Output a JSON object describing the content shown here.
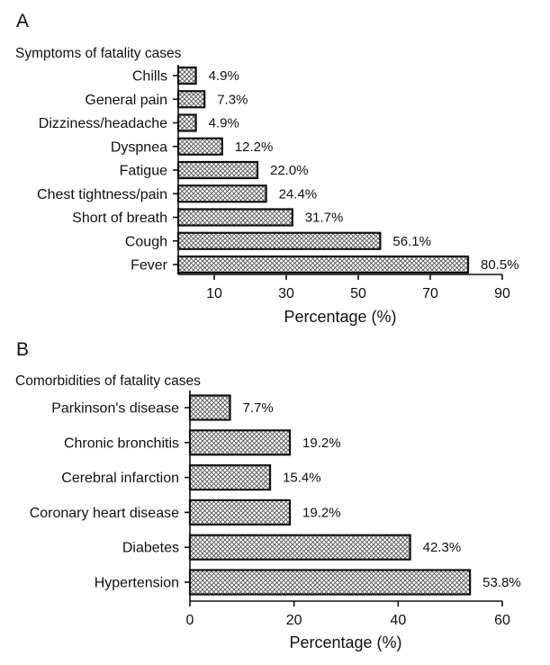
{
  "chart_data": [
    {
      "panel_label": "A",
      "type": "bar",
      "orientation": "horizontal",
      "title": "Symptoms of fatality cases",
      "categories": [
        "Chills",
        "General pain",
        "Dizziness/headache",
        "Dyspnea",
        "Fatigue",
        "Chest tightness/pain",
        "Short of breath",
        "Cough",
        "Fever"
      ],
      "values": [
        4.9,
        7.3,
        4.9,
        12.2,
        22.0,
        24.4,
        31.7,
        56.1,
        80.5
      ],
      "value_labels": [
        "4.9%",
        "7.3%",
        "4.9%",
        "12.2%",
        "22.0%",
        "24.4%",
        "31.7%",
        "56.1%",
        "80.5%"
      ],
      "xlabel": "Percentage (%)",
      "xlim": [
        0,
        90
      ],
      "xticks": [
        10,
        30,
        50,
        70,
        90
      ],
      "grid": false,
      "bar_pattern": "crosshatch"
    },
    {
      "panel_label": "B",
      "type": "bar",
      "orientation": "horizontal",
      "title": "Comorbidities of fatality cases",
      "categories": [
        "Parkinson's disease",
        "Chronic bronchitis",
        "Cerebral infarction",
        "Coronary heart disease",
        "Diabetes",
        "Hypertension"
      ],
      "values": [
        7.7,
        19.2,
        15.4,
        19.2,
        42.3,
        53.8
      ],
      "value_labels": [
        "7.7%",
        "19.2%",
        "15.4%",
        "19.2%",
        "42.3%",
        "53.8%"
      ],
      "xlabel": "Percentage (%)",
      "xlim": [
        0,
        60
      ],
      "xticks": [
        0,
        20,
        40,
        60
      ],
      "grid": false,
      "bar_pattern": "crosshatch"
    }
  ]
}
